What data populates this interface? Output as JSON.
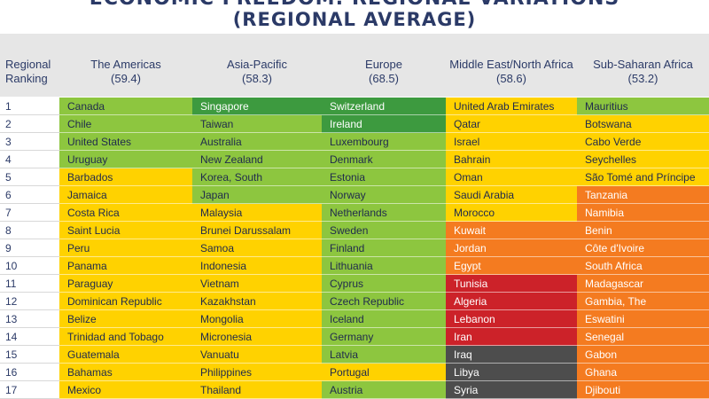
{
  "title": {
    "line1": "ECONOMIC FREEDOM: REGIONAL VARIATIONS",
    "line2": "(REGIONAL AVERAGE)"
  },
  "header": {
    "rank_label": [
      "Regional",
      "Ranking"
    ],
    "regions": [
      {
        "name": "The Americas",
        "avg": "(59.4)"
      },
      {
        "name": "Asia-Pacific",
        "avg": "(58.3)"
      },
      {
        "name": "Europe",
        "avg": "(68.5)"
      },
      {
        "name": "Middle East/North Africa",
        "avg": "(58.6)"
      },
      {
        "name": "Sub-Saharan Africa",
        "avg": "(53.2)"
      }
    ]
  },
  "colors": {
    "free": "#3d9a3f",
    "mostly_free": "#8dc63f",
    "moderately_free": "#ffd200",
    "mostly_unfree": "#f47b20",
    "repressed": "#cc2229",
    "not_graded": "#4d4d4d"
  },
  "rows": [
    {
      "rank": "1",
      "cells": [
        {
          "name": "Canada",
          "cat": "mostly_free"
        },
        {
          "name": "Singapore",
          "cat": "free"
        },
        {
          "name": "Switzerland",
          "cat": "free"
        },
        {
          "name": "United Arab Emirates",
          "cat": "moderately_free"
        },
        {
          "name": "Mauritius",
          "cat": "mostly_free"
        }
      ]
    },
    {
      "rank": "2",
      "cells": [
        {
          "name": "Chile",
          "cat": "mostly_free"
        },
        {
          "name": "Taiwan",
          "cat": "mostly_free"
        },
        {
          "name": "Ireland",
          "cat": "free"
        },
        {
          "name": "Qatar",
          "cat": "moderately_free"
        },
        {
          "name": "Botswana",
          "cat": "moderately_free"
        }
      ]
    },
    {
      "rank": "3",
      "cells": [
        {
          "name": "United States",
          "cat": "mostly_free"
        },
        {
          "name": "Australia",
          "cat": "mostly_free"
        },
        {
          "name": "Luxembourg",
          "cat": "mostly_free"
        },
        {
          "name": "Israel",
          "cat": "moderately_free"
        },
        {
          "name": "Cabo Verde",
          "cat": "moderately_free"
        }
      ]
    },
    {
      "rank": "4",
      "cells": [
        {
          "name": "Uruguay",
          "cat": "mostly_free"
        },
        {
          "name": "New Zealand",
          "cat": "mostly_free"
        },
        {
          "name": "Denmark",
          "cat": "mostly_free"
        },
        {
          "name": "Bahrain",
          "cat": "moderately_free"
        },
        {
          "name": "Seychelles",
          "cat": "moderately_free"
        }
      ]
    },
    {
      "rank": "5",
      "cells": [
        {
          "name": "Barbados",
          "cat": "moderately_free"
        },
        {
          "name": "Korea, South",
          "cat": "mostly_free"
        },
        {
          "name": "Estonia",
          "cat": "mostly_free"
        },
        {
          "name": "Oman",
          "cat": "moderately_free"
        },
        {
          "name": "São Tomé and Príncipe",
          "cat": "moderately_free"
        }
      ]
    },
    {
      "rank": "6",
      "cells": [
        {
          "name": "Jamaica",
          "cat": "moderately_free"
        },
        {
          "name": "Japan",
          "cat": "mostly_free"
        },
        {
          "name": "Norway",
          "cat": "mostly_free"
        },
        {
          "name": "Saudi Arabia",
          "cat": "moderately_free"
        },
        {
          "name": "Tanzania",
          "cat": "mostly_unfree"
        }
      ]
    },
    {
      "rank": "7",
      "cells": [
        {
          "name": "Costa Rica",
          "cat": "moderately_free"
        },
        {
          "name": "Malaysia",
          "cat": "moderately_free"
        },
        {
          "name": "Netherlands",
          "cat": "mostly_free"
        },
        {
          "name": "Morocco",
          "cat": "moderately_free"
        },
        {
          "name": "Namibia",
          "cat": "mostly_unfree"
        }
      ]
    },
    {
      "rank": "8",
      "cells": [
        {
          "name": "Saint Lucia",
          "cat": "moderately_free"
        },
        {
          "name": "Brunei Darussalam",
          "cat": "moderately_free"
        },
        {
          "name": "Sweden",
          "cat": "mostly_free"
        },
        {
          "name": "Kuwait",
          "cat": "mostly_unfree"
        },
        {
          "name": "Benin",
          "cat": "mostly_unfree"
        }
      ]
    },
    {
      "rank": "9",
      "cells": [
        {
          "name": "Peru",
          "cat": "moderately_free"
        },
        {
          "name": "Samoa",
          "cat": "moderately_free"
        },
        {
          "name": "Finland",
          "cat": "mostly_free"
        },
        {
          "name": "Jordan",
          "cat": "mostly_unfree"
        },
        {
          "name": "Côte d'Ivoire",
          "cat": "mostly_unfree"
        }
      ]
    },
    {
      "rank": "10",
      "cells": [
        {
          "name": "Panama",
          "cat": "moderately_free"
        },
        {
          "name": "Indonesia",
          "cat": "moderately_free"
        },
        {
          "name": "Lithuania",
          "cat": "mostly_free"
        },
        {
          "name": "Egypt",
          "cat": "mostly_unfree"
        },
        {
          "name": "South Africa",
          "cat": "mostly_unfree"
        }
      ]
    },
    {
      "rank": "11",
      "cells": [
        {
          "name": "Paraguay",
          "cat": "moderately_free"
        },
        {
          "name": "Vietnam",
          "cat": "moderately_free"
        },
        {
          "name": "Cyprus",
          "cat": "mostly_free"
        },
        {
          "name": "Tunisia",
          "cat": "repressed"
        },
        {
          "name": "Madagascar",
          "cat": "mostly_unfree"
        }
      ]
    },
    {
      "rank": "12",
      "cells": [
        {
          "name": "Dominican Republic",
          "cat": "moderately_free"
        },
        {
          "name": "Kazakhstan",
          "cat": "moderately_free"
        },
        {
          "name": "Czech Republic",
          "cat": "mostly_free"
        },
        {
          "name": "Algeria",
          "cat": "repressed"
        },
        {
          "name": "Gambia, The",
          "cat": "mostly_unfree"
        }
      ]
    },
    {
      "rank": "13",
      "cells": [
        {
          "name": "Belize",
          "cat": "moderately_free"
        },
        {
          "name": "Mongolia",
          "cat": "moderately_free"
        },
        {
          "name": "Iceland",
          "cat": "mostly_free"
        },
        {
          "name": "Lebanon",
          "cat": "repressed"
        },
        {
          "name": "Eswatini",
          "cat": "mostly_unfree"
        }
      ]
    },
    {
      "rank": "14",
      "cells": [
        {
          "name": "Trinidad and Tobago",
          "cat": "moderately_free"
        },
        {
          "name": "Micronesia",
          "cat": "moderately_free"
        },
        {
          "name": "Germany",
          "cat": "mostly_free"
        },
        {
          "name": "Iran",
          "cat": "repressed"
        },
        {
          "name": "Senegal",
          "cat": "mostly_unfree"
        }
      ]
    },
    {
      "rank": "15",
      "cells": [
        {
          "name": "Guatemala",
          "cat": "moderately_free"
        },
        {
          "name": "Vanuatu",
          "cat": "moderately_free"
        },
        {
          "name": "Latvia",
          "cat": "mostly_free"
        },
        {
          "name": "Iraq",
          "cat": "not_graded"
        },
        {
          "name": "Gabon",
          "cat": "mostly_unfree"
        }
      ]
    },
    {
      "rank": "16",
      "cells": [
        {
          "name": "Bahamas",
          "cat": "moderately_free"
        },
        {
          "name": "Philippines",
          "cat": "moderately_free"
        },
        {
          "name": "Portugal",
          "cat": "moderately_free"
        },
        {
          "name": "Libya",
          "cat": "not_graded"
        },
        {
          "name": "Ghana",
          "cat": "mostly_unfree"
        }
      ]
    },
    {
      "rank": "17",
      "cells": [
        {
          "name": "Mexico",
          "cat": "moderately_free"
        },
        {
          "name": "Thailand",
          "cat": "moderately_free"
        },
        {
          "name": "Austria",
          "cat": "mostly_free"
        },
        {
          "name": "Syria",
          "cat": "not_graded"
        },
        {
          "name": "Djibouti",
          "cat": "mostly_unfree"
        }
      ]
    }
  ]
}
